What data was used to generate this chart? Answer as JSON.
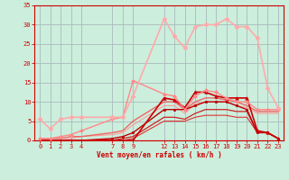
{
  "background_color": "#cceedd",
  "grid_color": "#aabbbb",
  "xlabel": "Vent moyen/en rafales ( km/h )",
  "ylim": [
    0,
    35
  ],
  "yticks": [
    0,
    5,
    10,
    15,
    20,
    25,
    30,
    35
  ],
  "xlim": [
    -0.5,
    23.5
  ],
  "xticks": [
    0,
    1,
    2,
    3,
    4,
    7,
    8,
    9,
    12,
    13,
    14,
    15,
    16,
    17,
    18,
    19,
    20,
    21,
    22,
    23
  ],
  "series": [
    {
      "x": [
        0,
        1,
        2,
        3,
        4,
        7,
        8,
        9,
        12,
        13,
        14,
        15,
        16,
        17,
        18,
        19,
        20,
        21,
        22,
        23
      ],
      "y": [
        0,
        0,
        0,
        0,
        0,
        0,
        0,
        0,
        11,
        10.5,
        8.5,
        12.5,
        12.5,
        11.5,
        11,
        11,
        11,
        2.5,
        2,
        0.5
      ],
      "color": "#cc0000",
      "marker": "^",
      "markersize": 2.5,
      "linewidth": 1.2,
      "zorder": 5
    },
    {
      "x": [
        0,
        1,
        2,
        3,
        4,
        7,
        8,
        9,
        12,
        13,
        14,
        15,
        16,
        17,
        18,
        19,
        20,
        21,
        22,
        23
      ],
      "y": [
        0,
        0,
        0,
        0,
        0,
        0.5,
        1,
        2,
        8,
        8,
        8,
        9,
        10,
        10,
        10,
        9,
        8,
        2,
        2,
        0.5
      ],
      "color": "#bb0000",
      "marker": "s",
      "markersize": 2,
      "linewidth": 1.0,
      "zorder": 4
    },
    {
      "x": [
        0,
        1,
        2,
        3,
        4,
        7,
        8,
        9,
        12,
        13,
        14,
        15,
        16,
        17,
        18,
        19,
        20,
        21,
        22,
        23
      ],
      "y": [
        0,
        0,
        0,
        0,
        0,
        0,
        0.5,
        1,
        6,
        6,
        5.5,
        7,
        8,
        8,
        8,
        7.5,
        7.5,
        2,
        2,
        0.5
      ],
      "color": "#cc2222",
      "marker": null,
      "markersize": 0,
      "linewidth": 0.9,
      "zorder": 3
    },
    {
      "x": [
        0,
        1,
        2,
        3,
        4,
        7,
        8,
        9,
        12,
        13,
        14,
        15,
        16,
        17,
        18,
        19,
        20,
        21,
        22,
        23
      ],
      "y": [
        0,
        0,
        0,
        0,
        0,
        0,
        0,
        0.5,
        5,
        5,
        5,
        6,
        6.5,
        6.5,
        6.5,
        6,
        6,
        2,
        2,
        0.5
      ],
      "color": "#dd3333",
      "marker": null,
      "markersize": 0,
      "linewidth": 0.8,
      "zorder": 2
    },
    {
      "x": [
        0,
        1,
        2,
        3,
        4,
        7,
        8,
        9,
        12,
        13,
        14,
        15,
        16,
        17,
        18,
        19,
        20,
        21,
        22,
        23
      ],
      "y": [
        5.5,
        3,
        5.5,
        6,
        6,
        6,
        6,
        11.5,
        31.5,
        27,
        24,
        29.5,
        30,
        30,
        31.5,
        29.5,
        29.5,
        26.5,
        13.5,
        8.5
      ],
      "color": "#ffaaaa",
      "marker": "D",
      "markersize": 2.5,
      "linewidth": 1.2,
      "zorder": 6
    },
    {
      "x": [
        0,
        1,
        2,
        3,
        4,
        7,
        8,
        9,
        12,
        13,
        14,
        15,
        16,
        17,
        18,
        19,
        20,
        21,
        22,
        23
      ],
      "y": [
        0.5,
        0.5,
        1,
        1.5,
        2.5,
        5.5,
        6,
        15.5,
        12,
        11.5,
        8,
        11.5,
        13,
        12.5,
        11,
        10,
        10,
        8,
        8,
        8
      ],
      "color": "#ff8888",
      "marker": "D",
      "markersize": 2,
      "linewidth": 1.0,
      "zorder": 5
    },
    {
      "x": [
        0,
        1,
        2,
        3,
        4,
        7,
        8,
        9,
        12,
        13,
        14,
        15,
        16,
        17,
        18,
        19,
        20,
        21,
        22,
        23
      ],
      "y": [
        0.5,
        0.5,
        0.5,
        1,
        1,
        2,
        2.5,
        5,
        10,
        10,
        8,
        10,
        11,
        11,
        10.5,
        10,
        9,
        7.5,
        7.5,
        7.5
      ],
      "color": "#ee6666",
      "marker": null,
      "markersize": 0,
      "linewidth": 1.0,
      "zorder": 3
    },
    {
      "x": [
        0,
        1,
        2,
        3,
        4,
        7,
        8,
        9,
        12,
        13,
        14,
        15,
        16,
        17,
        18,
        19,
        20,
        21,
        22,
        23
      ],
      "y": [
        0,
        0,
        0,
        0.5,
        1,
        1.5,
        2,
        4,
        9,
        9,
        7,
        9.5,
        10,
        10,
        10,
        9,
        8.5,
        7,
        7,
        7
      ],
      "color": "#ff9999",
      "marker": null,
      "markersize": 0,
      "linewidth": 0.8,
      "zorder": 2
    }
  ]
}
